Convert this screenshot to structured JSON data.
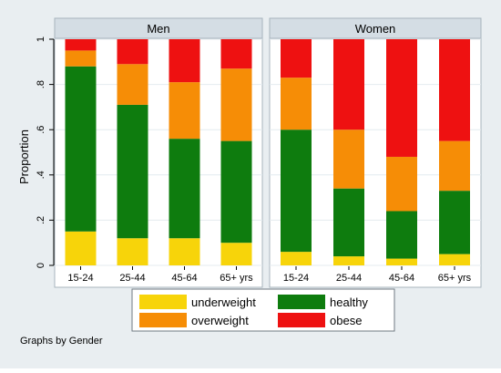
{
  "chart_data": {
    "type": "bar",
    "stacked": true,
    "ylabel": "Proportion",
    "ylim": [
      0,
      1
    ],
    "yticks": [
      0,
      0.2,
      0.4,
      0.6,
      0.8,
      1
    ],
    "ytick_labels": [
      "0",
      ".2",
      ".4",
      ".6",
      ".8",
      "1"
    ],
    "categories": [
      "15-24",
      "25-44",
      "45-64",
      "65+ yrs"
    ],
    "grid": true,
    "legend_position": "bottom",
    "panels": [
      {
        "title": "Men",
        "series": [
          {
            "name": "underweight",
            "values": [
              0.15,
              0.12,
              0.12,
              0.1
            ]
          },
          {
            "name": "healthy",
            "values": [
              0.73,
              0.59,
              0.44,
              0.45
            ]
          },
          {
            "name": "overweight",
            "values": [
              0.07,
              0.18,
              0.25,
              0.32
            ]
          },
          {
            "name": "obese",
            "values": [
              0.05,
              0.11,
              0.19,
              0.13
            ]
          }
        ]
      },
      {
        "title": "Women",
        "series": [
          {
            "name": "underweight",
            "values": [
              0.06,
              0.04,
              0.03,
              0.05
            ]
          },
          {
            "name": "healthy",
            "values": [
              0.54,
              0.3,
              0.21,
              0.28
            ]
          },
          {
            "name": "overweight",
            "values": [
              0.23,
              0.26,
              0.24,
              0.22
            ]
          },
          {
            "name": "obese",
            "values": [
              0.17,
              0.4,
              0.52,
              0.45
            ]
          }
        ]
      }
    ],
    "colors": {
      "underweight": "#f7d40a",
      "healthy": "#0e7c0e",
      "overweight": "#f68d06",
      "obese": "#ee1111"
    },
    "note": "Graphs by Gender"
  }
}
